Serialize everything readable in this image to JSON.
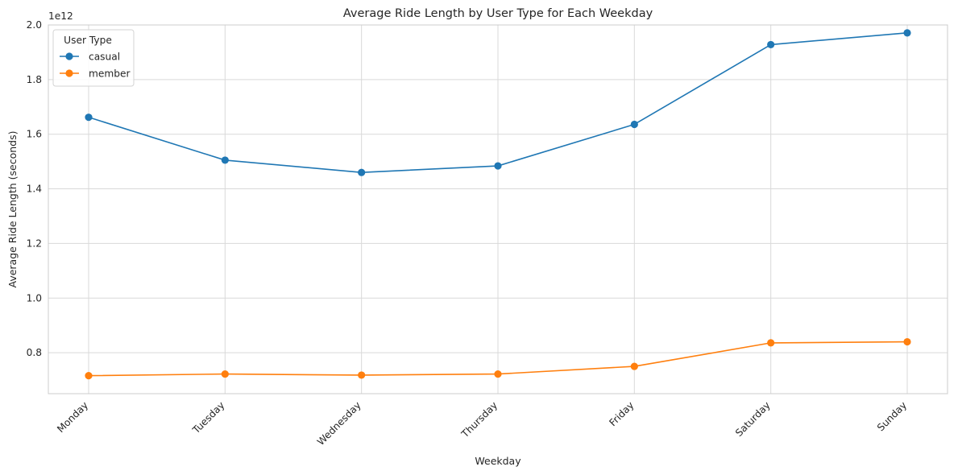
{
  "chart_data": {
    "type": "line",
    "title": "Average Ride Length by User Type for Each Weekday",
    "xlabel": "Weekday",
    "ylabel": "Average Ride Length (seconds)",
    "y_offset_label": "1e12",
    "categories": [
      "Monday",
      "Tuesday",
      "Wednesday",
      "Thursday",
      "Friday",
      "Saturday",
      "Sunday"
    ],
    "series": [
      {
        "name": "casual",
        "color": "#1f77b4",
        "values": [
          1.662,
          1.505,
          1.46,
          1.484,
          1.636,
          1.928,
          1.971
        ]
      },
      {
        "name": "member",
        "color": "#ff7f0e",
        "values": [
          0.716,
          0.722,
          0.718,
          0.722,
          0.75,
          0.836,
          0.84
        ]
      }
    ],
    "ylim": [
      0.65,
      2.0
    ],
    "yticks": [
      0.8,
      1.0,
      1.2,
      1.4,
      1.6,
      1.8,
      2.0
    ],
    "yticklabels": [
      "0.8",
      "1.0",
      "1.2",
      "1.4",
      "1.6",
      "1.8",
      "2.0"
    ],
    "grid": true,
    "legend": {
      "title": "User Type",
      "position": "top-left"
    }
  }
}
